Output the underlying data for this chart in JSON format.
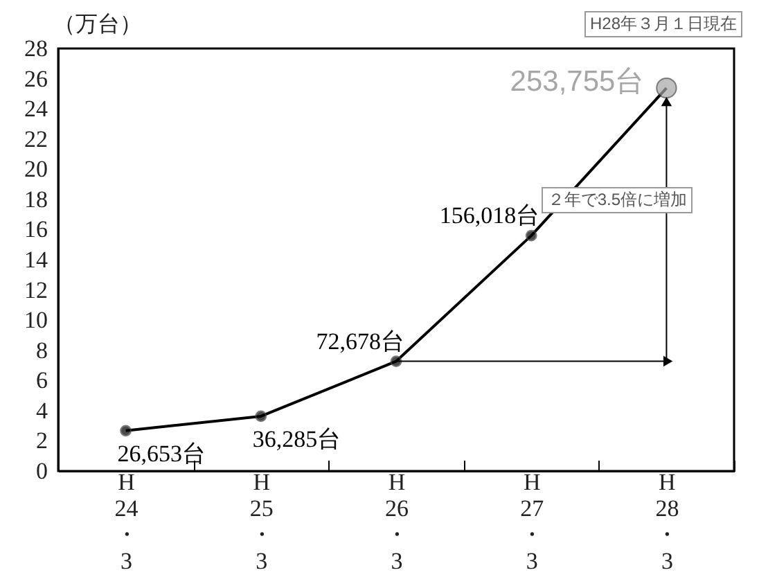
{
  "chart_data": {
    "type": "line",
    "ylabel": "（万台）",
    "categories": [
      "H24・3",
      "H25・3",
      "H26・3",
      "H27・3",
      "H28・3"
    ],
    "series": [
      {
        "color": "#000000",
        "values": [
          2.67,
          3.63,
          7.27,
          15.6,
          25.38
        ]
      }
    ],
    "colors": [
      "#000000",
      "#000000",
      "#000000",
      "#000000",
      "#a6a6a6"
    ],
    "value_labels": [
      "26,653台",
      "36,285台",
      "72,678台",
      "156,018台",
      "253,755台"
    ],
    "ylim": [
      0,
      28
    ],
    "yticks": [
      0,
      2,
      4,
      6,
      8,
      10,
      12,
      14,
      16,
      18,
      20,
      22,
      24,
      26,
      28
    ],
    "grid": false,
    "marker": "circle",
    "line_style": "solid",
    "annotations": [
      "H28年３月１日現在",
      "２年で3.5倍に増加"
    ]
  }
}
